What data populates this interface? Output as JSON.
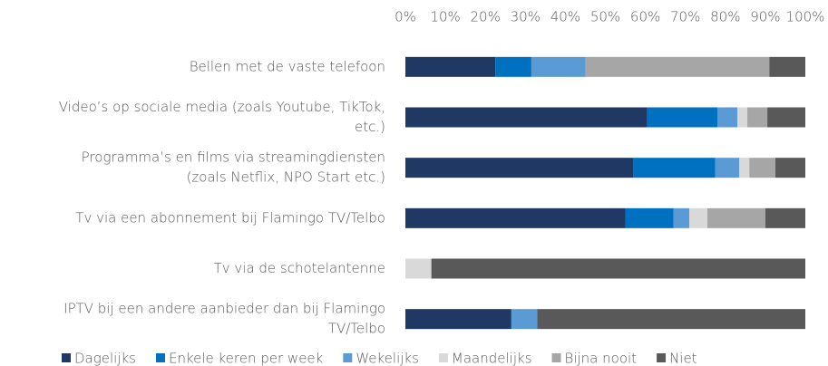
{
  "chart_data": {
    "type": "stacked_bar_horizontal",
    "categories": [
      [
        "Bellen met de vaste telefoon"
      ],
      [
        "Video’s op sociale media (zoals Youtube, TikTok,",
        "etc.)"
      ],
      [
        "Programma’s en films via streamingdiensten",
        "(zoals Netflix, NPO Start etc.)"
      ],
      [
        "Tv via een abonnement bij Flamingo TV/Telbo"
      ],
      [
        "Tv via de schotelantenne"
      ],
      [
        "IPTV bij een andere aanbieder dan bij Flamingo",
        "TV/Telbo"
      ]
    ],
    "series": [
      {
        "name": "Dagelijks",
        "color": "#203864",
        "values": [
          22.5,
          60.5,
          57,
          55,
          0,
          26.5
        ]
      },
      {
        "name": "Enkele keren per week",
        "color": "#0070c0",
        "values": [
          9,
          17.5,
          20.5,
          12,
          0,
          0
        ]
      },
      {
        "name": "Wekelijks",
        "color": "#5b9bd5",
        "values": [
          13.5,
          5,
          6,
          4,
          0,
          6.5
        ]
      },
      {
        "name": "Maandelijks",
        "color": "#d9d9d9",
        "values": [
          0,
          2.5,
          2.5,
          4.5,
          6.5,
          0
        ]
      },
      {
        "name": "Bijna nooit",
        "color": "#a6a6a6",
        "values": [
          46,
          5,
          6.5,
          14.5,
          0,
          0
        ]
      },
      {
        "name": "Niet",
        "color": "#595959",
        "values": [
          9,
          9.5,
          7.5,
          10,
          93.5,
          67
        ]
      }
    ],
    "xlim": [
      0,
      100
    ],
    "xticks": [
      {
        "value": 0,
        "label": "0%"
      },
      {
        "value": 10,
        "label": "10%"
      },
      {
        "value": 20,
        "label": "20%"
      },
      {
        "value": 30,
        "label": "30%"
      },
      {
        "value": 40,
        "label": "40%"
      },
      {
        "value": 50,
        "label": "50%"
      },
      {
        "value": 60,
        "label": "60%"
      },
      {
        "value": 70,
        "label": "70%"
      },
      {
        "value": 80,
        "label": "80%"
      },
      {
        "value": 90,
        "label": "90%"
      },
      {
        "value": 100,
        "label": "100%"
      }
    ],
    "legend": "bottom"
  }
}
